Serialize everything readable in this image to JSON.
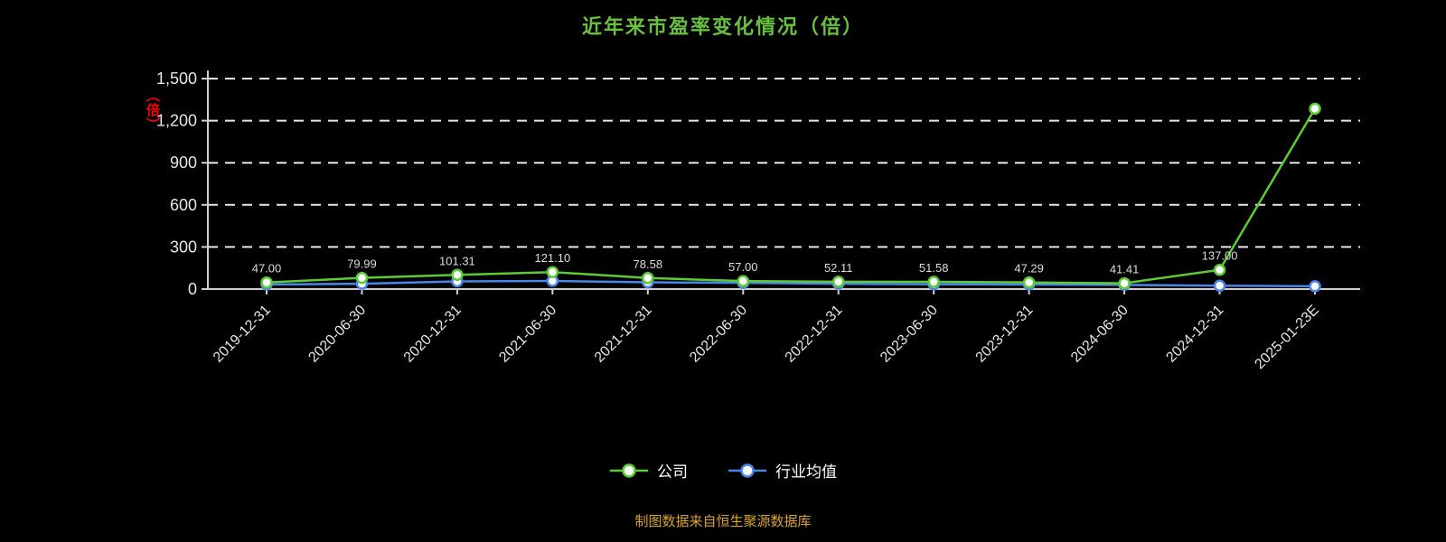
{
  "page": {
    "background": "#000000"
  },
  "title": {
    "text": "近年来市盈率变化情况（倍）",
    "color": "#6abf40"
  },
  "y_axis_unit": {
    "text": "（倍）",
    "color": "#ff0000"
  },
  "legend": [
    {
      "label": "公司",
      "color": "#5ecb35"
    },
    {
      "label": "行业均值",
      "color": "#4a86e8"
    }
  ],
  "footer": {
    "text": "制图数据来自恒生聚源数据库",
    "color": "#d9a433"
  },
  "axis": {
    "line_color": "#cfcfcf",
    "grid_color": "#e8e8e8",
    "tick_label_color": "#e6e6e6",
    "data_label_color": "#dcdcdc"
  },
  "chart_data": {
    "type": "line",
    "title": "近年来市盈率变化情况（倍）",
    "xlabel": "",
    "ylabel": "（倍）",
    "ylim": [
      0,
      1500
    ],
    "yticks": [
      0,
      300,
      600,
      900,
      1200,
      1500
    ],
    "grid": "horizontal-dashed",
    "legend_position": "bottom",
    "categories": [
      "2019-12-31",
      "2020-06-30",
      "2020-12-31",
      "2021-06-30",
      "2021-12-31",
      "2022-06-30",
      "2022-12-31",
      "2023-06-30",
      "2023-12-31",
      "2024-06-30",
      "2024-12-31",
      "2025-01-23E"
    ],
    "series": [
      {
        "name": "行业均值",
        "color": "#4a86e8",
        "values": [
          32,
          38,
          55,
          58,
          48,
          44,
          38,
          34,
          32,
          30,
          24,
          20
        ],
        "labels": [
          "",
          "",
          "",
          "",
          "",
          "",
          "",
          "",
          "",
          "",
          "",
          ""
        ]
      },
      {
        "name": "公司",
        "color": "#5ecb35",
        "values": [
          47.0,
          79.99,
          101.31,
          121.1,
          78.58,
          57.0,
          52.11,
          51.58,
          47.29,
          41.41,
          137.0,
          1285
        ],
        "labels": [
          "47.00",
          "79.99",
          "101.31",
          "121.10",
          "78.58",
          "57.00",
          "52.11",
          "51.58",
          "47.29",
          "41.41",
          "137.00",
          ""
        ]
      }
    ]
  }
}
